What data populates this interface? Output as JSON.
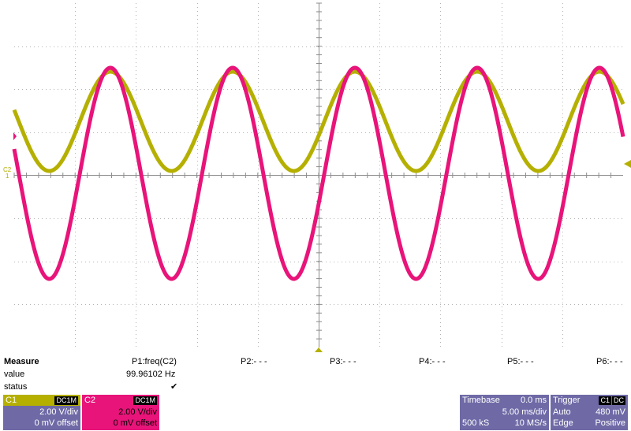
{
  "scope": {
    "markers": {
      "c2_label": "C2",
      "c1_label": "1"
    },
    "colors": {
      "c1": "#b5b000",
      "c2": "#e8147a",
      "grid": "#b4b4b4",
      "axis": "#8c8c8c"
    }
  },
  "measure": {
    "title": "Measure",
    "row_value": "value",
    "row_status": "status",
    "params": [
      {
        "name": "P1:freq(C2)",
        "value": "99.96102 Hz",
        "status": "✔"
      },
      {
        "name": "P2:- - -",
        "value": "",
        "status": ""
      },
      {
        "name": "P3:- - -",
        "value": "",
        "status": ""
      },
      {
        "name": "P4:- - -",
        "value": "",
        "status": ""
      },
      {
        "name": "P5:- - -",
        "value": "",
        "status": ""
      },
      {
        "name": "P6:- - -",
        "value": "",
        "status": ""
      }
    ]
  },
  "channels": [
    {
      "name": "C1",
      "coupling": "DC1M",
      "vdiv": "2.00 V/div",
      "offset": "0 mV offset",
      "color": "#b5b000"
    },
    {
      "name": "C2",
      "coupling": "DC1M",
      "vdiv": "2.00 V/div",
      "offset": "0 mV offset",
      "color": "#e8147a"
    }
  ],
  "timebase": {
    "title": "Timebase",
    "delay": "0.0 ms",
    "tdiv": "5.00 ms/div",
    "samples": "500 kS",
    "rate": "10 MS/s"
  },
  "trigger": {
    "title": "Trigger",
    "src": "C1",
    "coupling": "DC",
    "mode": "Auto",
    "level": "480 mV",
    "type": "Edge",
    "slope": "Positive"
  }
}
